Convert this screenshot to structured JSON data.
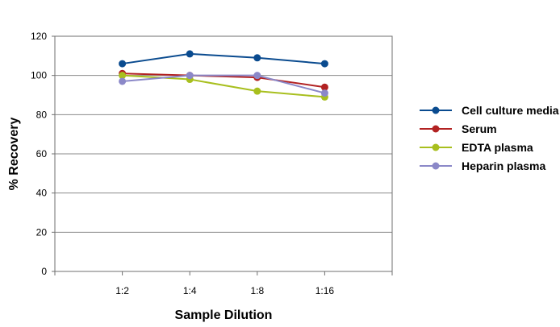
{
  "chart_data": {
    "type": "line",
    "title": "",
    "xlabel": "Sample Dilution",
    "ylabel": "% Recovery",
    "categories": [
      "1:2",
      "1:4",
      "1:8",
      "1:16"
    ],
    "ylim": [
      0,
      120
    ],
    "yticks": [
      0,
      20,
      40,
      60,
      80,
      100,
      120
    ],
    "grid": true,
    "legend_position": "right",
    "series": [
      {
        "name": "Cell culture media",
        "color": "#0a4b8f",
        "values": [
          106,
          111,
          109,
          106
        ]
      },
      {
        "name": "Serum",
        "color": "#b22222",
        "values": [
          101,
          100,
          99,
          94
        ]
      },
      {
        "name": "EDTA plasma",
        "color": "#a8bf1e",
        "values": [
          100,
          98,
          92,
          89
        ]
      },
      {
        "name": "Heparin plasma",
        "color": "#8b88c8",
        "values": [
          97,
          100,
          100,
          91
        ]
      }
    ]
  }
}
